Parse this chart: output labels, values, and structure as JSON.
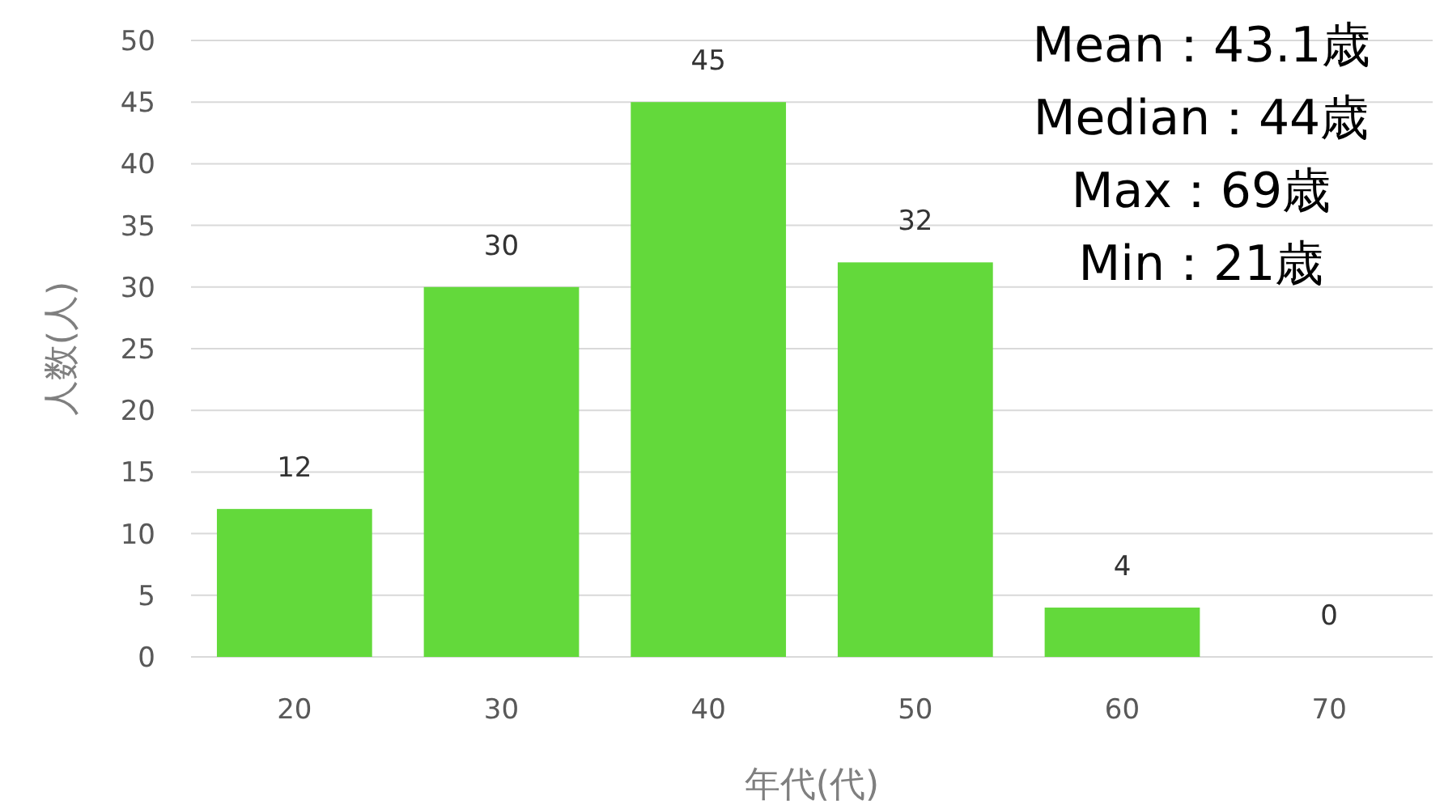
{
  "chart_data": {
    "type": "bar",
    "xlabel": "年代(代)",
    "ylabel": "人数(人)",
    "categories": [
      "20",
      "30",
      "40",
      "50",
      "60",
      "70"
    ],
    "values": [
      12,
      30,
      45,
      32,
      4,
      0
    ],
    "color": "#63d93b",
    "ylim": [
      0,
      50
    ],
    "yticks": [
      0,
      5,
      10,
      15,
      20,
      25,
      30,
      35,
      40,
      45,
      50
    ],
    "grid": "y",
    "data_labels": true,
    "annotations": [
      "Mean：43.1歳",
      "Median：44歳",
      "Max：69歳",
      "Min：21歳"
    ]
  }
}
